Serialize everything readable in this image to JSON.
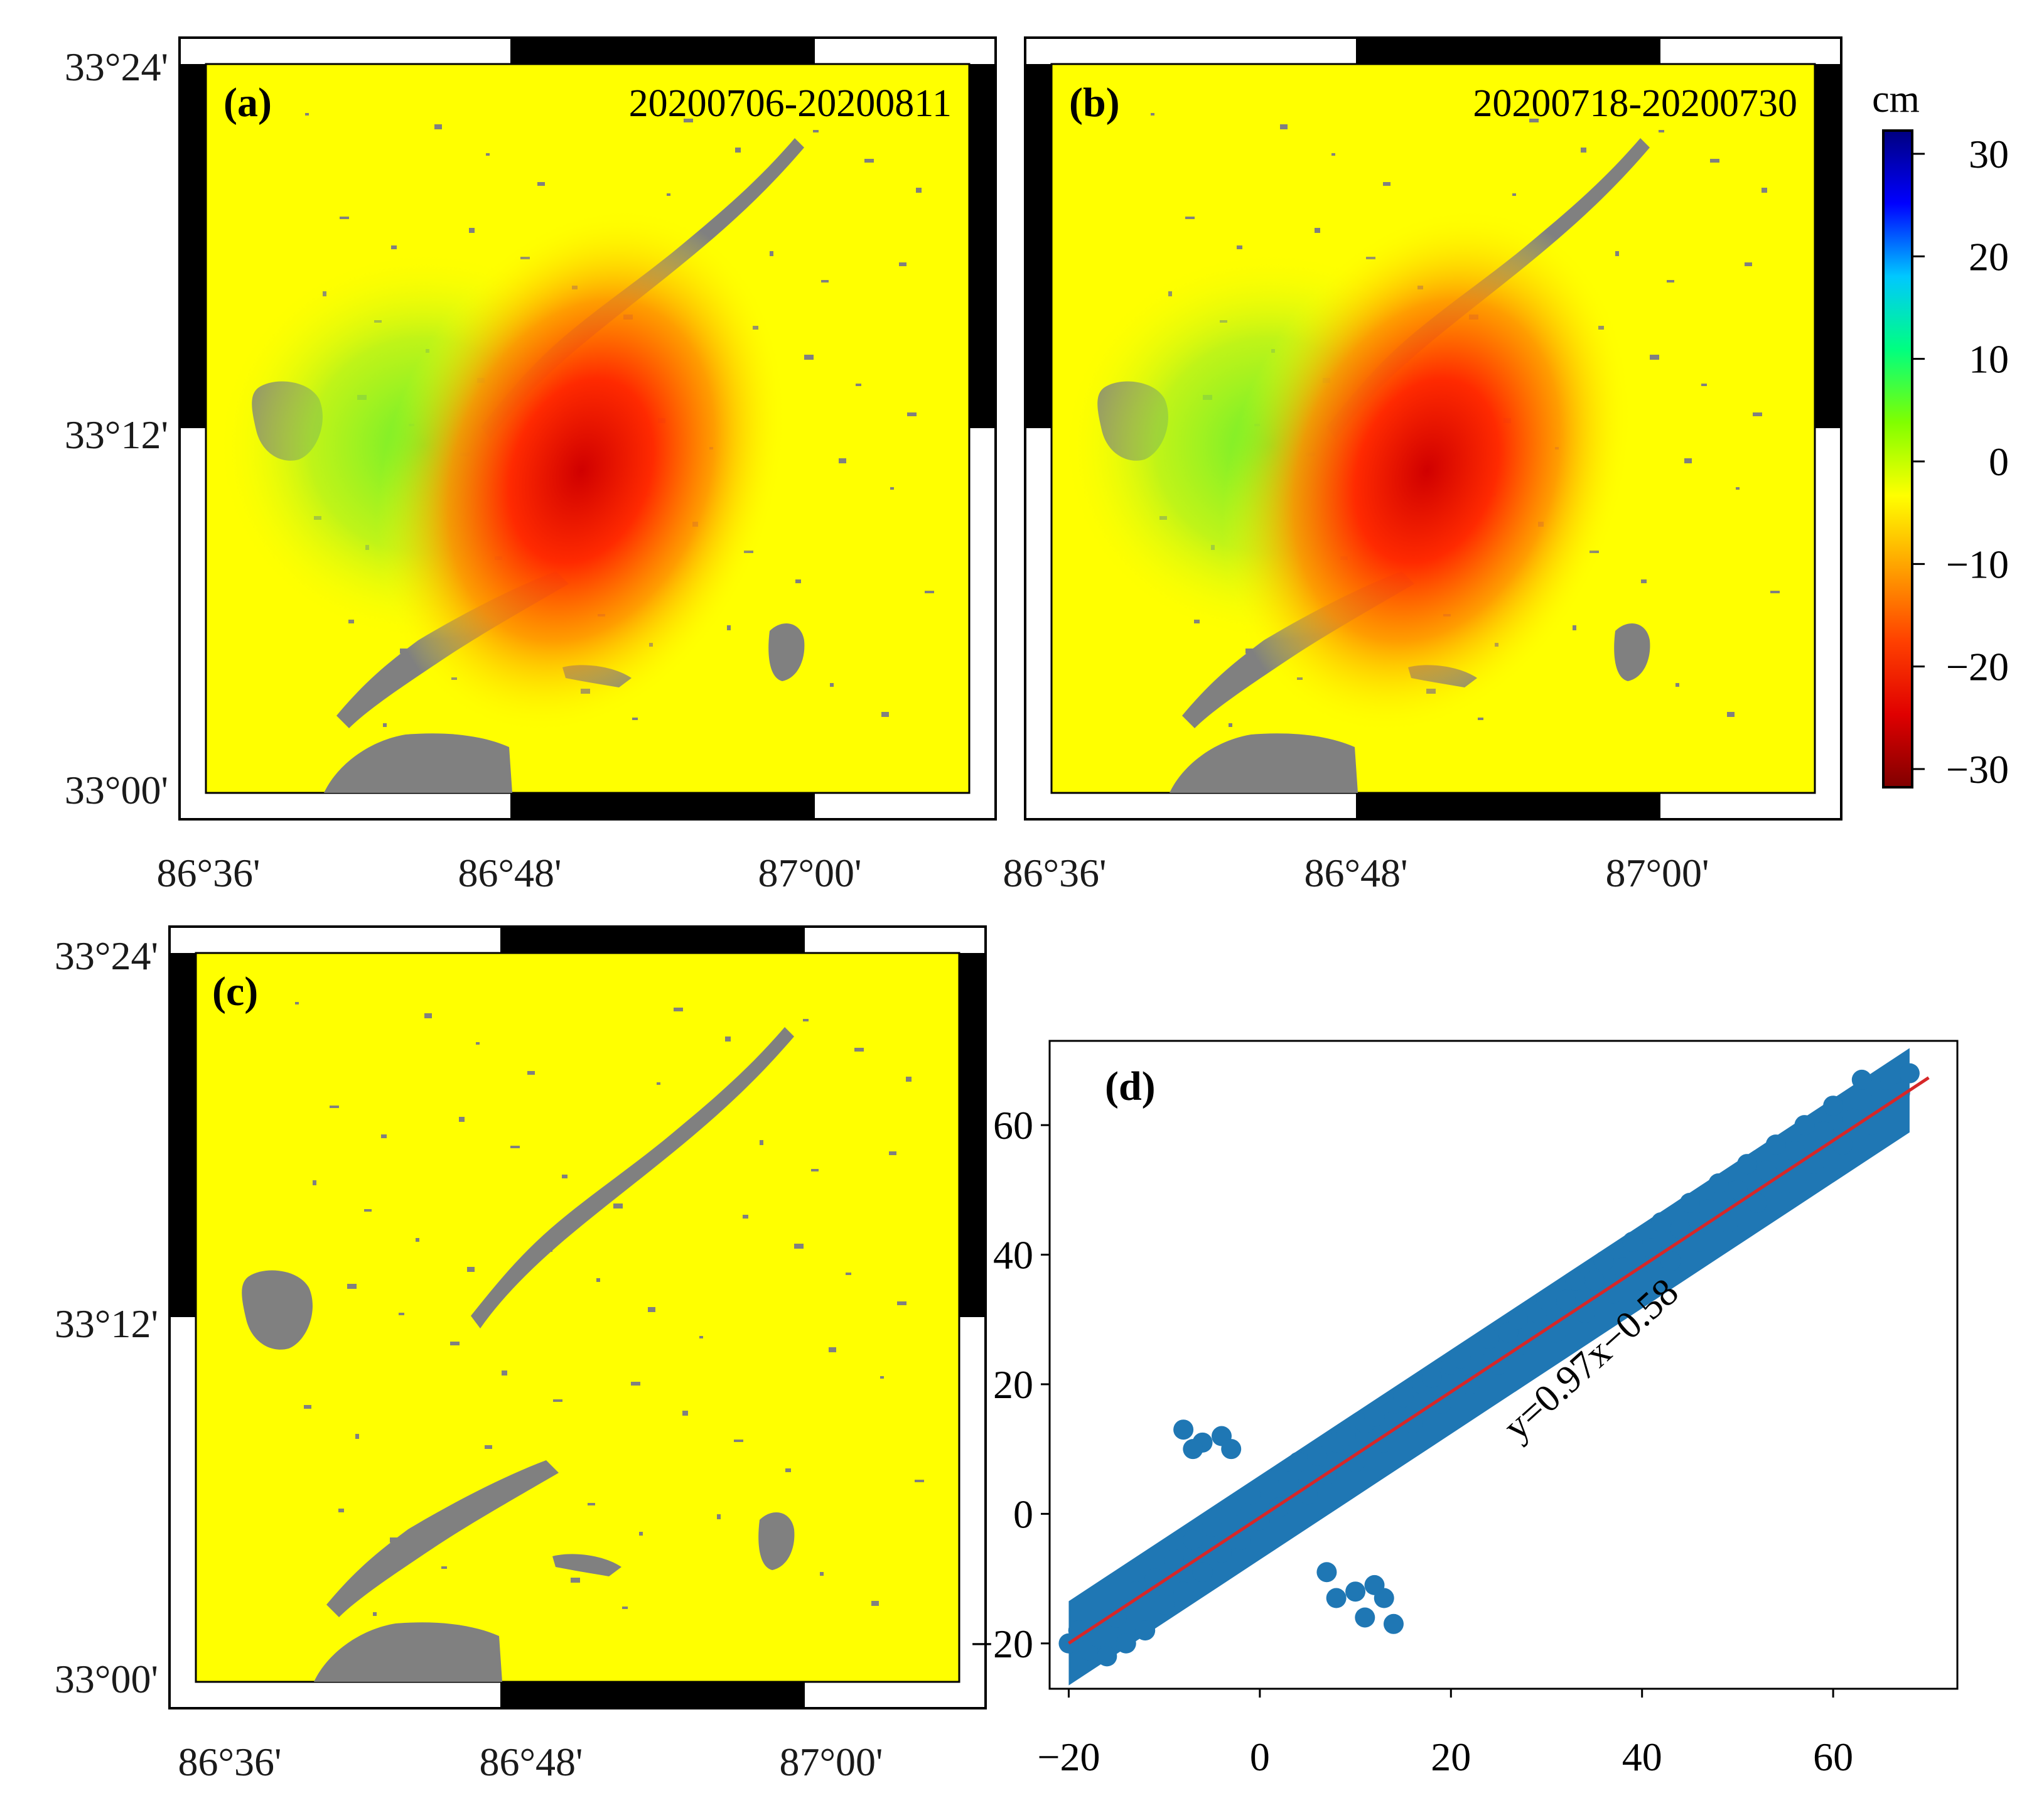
{
  "colors": {
    "background": "#ffff00",
    "mask": "#808080",
    "scatter": "#1f77b4",
    "fit_line": "#d62728",
    "frame": "#000000"
  },
  "maps": {
    "lat_ticks": [
      "33°24'",
      "33°12'",
      "33°00'"
    ],
    "lon_ticks": [
      "86°36'",
      "86°48'",
      "87°00'"
    ],
    "panels": [
      {
        "label": "(a)",
        "letter": "a",
        "date": "20200706-20200811",
        "has_deformation": true
      },
      {
        "label": "(b)",
        "letter": "b",
        "date": "20200718-20200730",
        "has_deformation": true
      },
      {
        "label": "(c)",
        "letter": "c",
        "date": "",
        "has_deformation": false
      }
    ]
  },
  "colorbar": {
    "unit": "cm",
    "ticks": [
      "30",
      "20",
      "10",
      "0",
      "−10",
      "−20",
      "−30"
    ],
    "range": [
      -30,
      30
    ],
    "stops": [
      "#000080",
      "#0000ff",
      "#00c8ff",
      "#00ff80",
      "#80ff00",
      "#ffff00",
      "#ffa000",
      "#ff4000",
      "#e00000",
      "#800000"
    ]
  },
  "chart_data": {
    "type": "scatter",
    "panel_label": "(d)",
    "letter": "d",
    "title": "",
    "xlabel": "",
    "ylabel": "",
    "xlim": [
      -22,
      73
    ],
    "ylim": [
      -27,
      73
    ],
    "xticks": [
      -20,
      0,
      20,
      40,
      60
    ],
    "xtick_labels": [
      "−20",
      "0",
      "20",
      "40",
      "60"
    ],
    "yticks": [
      -20,
      0,
      20,
      40,
      60
    ],
    "ytick_labels": [
      "−20",
      "0",
      "20",
      "40",
      "60"
    ],
    "fit": {
      "slope": 0.97,
      "intercept": -0.58,
      "x_range": [
        -20,
        70
      ],
      "label": "y=0.97x−0.58"
    },
    "series": [
      {
        "name": "points",
        "points": [
          [
            -18,
            -21
          ],
          [
            -16,
            -22
          ],
          [
            -14,
            -20
          ],
          [
            -15,
            -16
          ],
          [
            -17,
            -19
          ],
          [
            -12,
            -18
          ],
          [
            -10,
            -14
          ],
          [
            -13,
            -12
          ],
          [
            -11,
            -10
          ],
          [
            -8,
            -12
          ],
          [
            -9,
            -7
          ],
          [
            -6,
            -9
          ],
          [
            -7,
            -4
          ],
          [
            -4,
            -6
          ],
          [
            -5,
            -2
          ],
          [
            -2,
            -4
          ],
          [
            -3,
            1
          ],
          [
            0,
            -1
          ],
          [
            -1,
            3
          ],
          [
            2,
            1
          ],
          [
            3,
            5
          ],
          [
            5,
            3
          ],
          [
            4,
            8
          ],
          [
            7,
            6
          ],
          [
            8,
            11
          ],
          [
            10,
            8
          ],
          [
            11,
            14
          ],
          [
            13,
            11
          ],
          [
            14,
            17
          ],
          [
            16,
            14
          ],
          [
            17,
            20
          ],
          [
            19,
            17
          ],
          [
            20,
            23
          ],
          [
            22,
            20
          ],
          [
            23,
            26
          ],
          [
            25,
            23
          ],
          [
            26,
            28
          ],
          [
            28,
            26
          ],
          [
            29,
            31
          ],
          [
            31,
            28
          ],
          [
            32,
            33
          ],
          [
            34,
            31
          ],
          [
            35,
            36
          ],
          [
            37,
            34
          ],
          [
            38,
            38
          ],
          [
            40,
            36
          ],
          [
            41,
            41
          ],
          [
            43,
            39
          ],
          [
            44,
            44
          ],
          [
            46,
            42
          ],
          [
            47,
            47
          ],
          [
            49,
            45
          ],
          [
            50,
            50
          ],
          [
            52,
            48
          ],
          [
            53,
            53
          ],
          [
            55,
            51
          ],
          [
            56,
            56
          ],
          [
            58,
            54
          ],
          [
            59,
            59
          ],
          [
            61,
            57
          ],
          [
            62,
            61
          ],
          [
            64,
            60
          ],
          [
            65,
            64
          ],
          [
            66,
            67
          ],
          [
            63,
            67
          ],
          [
            60,
            63
          ],
          [
            57,
            60
          ],
          [
            54,
            57
          ],
          [
            51,
            54
          ],
          [
            48,
            51
          ],
          [
            45,
            48
          ],
          [
            42,
            45
          ],
          [
            39,
            42
          ],
          [
            36,
            39
          ],
          [
            33,
            36
          ],
          [
            30,
            33
          ],
          [
            27,
            30
          ],
          [
            24,
            27
          ],
          [
            21,
            24
          ],
          [
            18,
            21
          ],
          [
            15,
            18
          ],
          [
            12,
            15
          ],
          [
            9,
            12
          ],
          [
            6,
            9
          ],
          [
            -8,
            13
          ],
          [
            -6,
            11
          ],
          [
            -4,
            12
          ],
          [
            -7,
            10
          ],
          [
            -3,
            10
          ],
          [
            7,
            -9
          ],
          [
            10,
            -12
          ],
          [
            11,
            -16
          ],
          [
            13,
            -13
          ],
          [
            14,
            -17
          ],
          [
            8,
            -13
          ],
          [
            12,
            -11
          ],
          [
            -19,
            -18
          ],
          [
            -20,
            -20
          ],
          [
            68,
            68
          ],
          [
            67,
            65
          ]
        ]
      }
    ]
  }
}
